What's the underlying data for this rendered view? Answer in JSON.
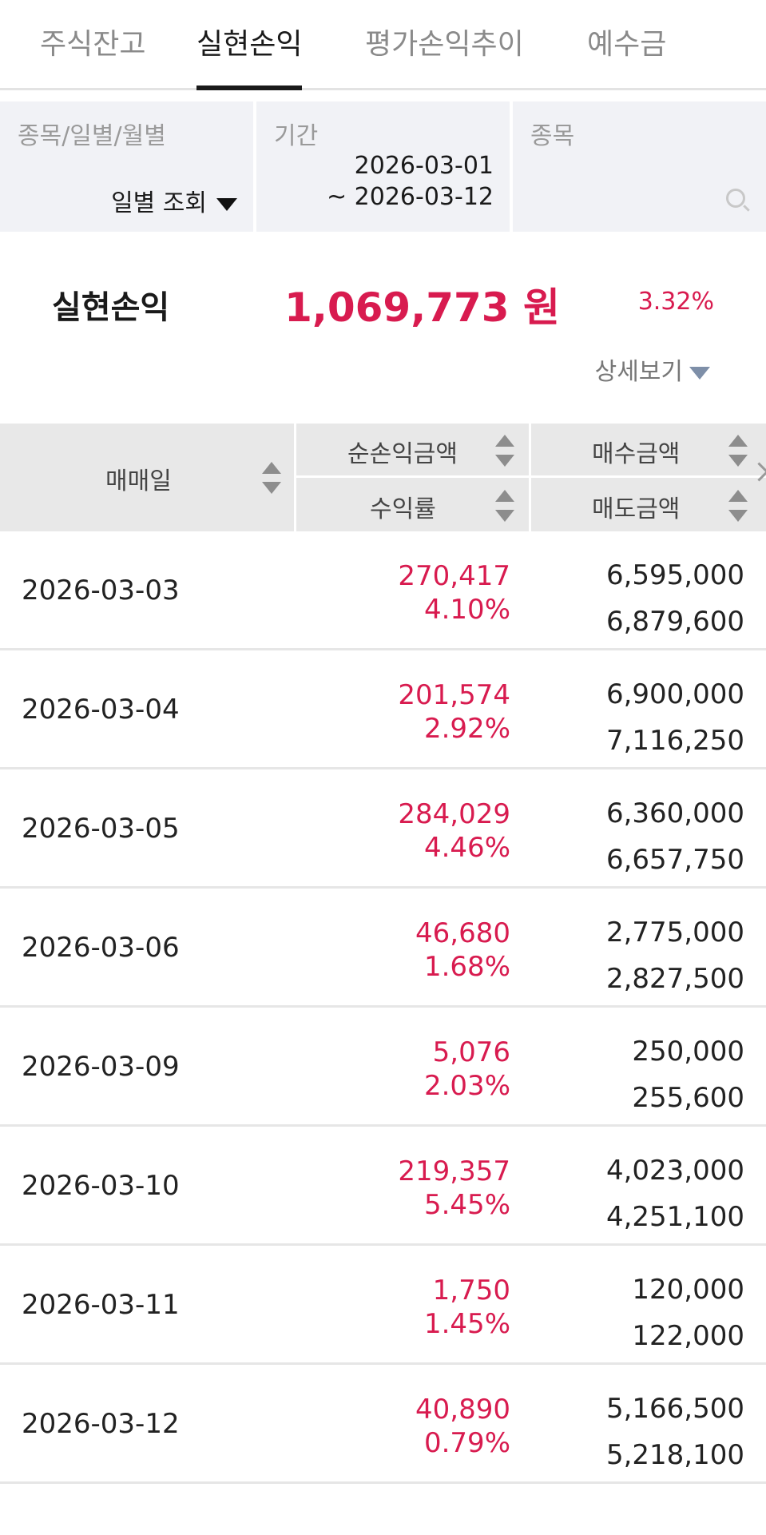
{
  "tabs": [
    {
      "label": "주식잔고",
      "active": false
    },
    {
      "label": "실현손익",
      "active": true
    },
    {
      "label": "평가손익추이",
      "active": false
    },
    {
      "label": "예수금",
      "active": false
    }
  ],
  "filters": {
    "mode_label": "종목/일별/월별",
    "mode_value": "일별 조회",
    "period_label": "기간",
    "period_start": "2026-03-01",
    "period_end": "~ 2026-03-12",
    "stock_label": "종목"
  },
  "summary": {
    "label": "실현손익",
    "amount": "1,069,773 원",
    "rate": "3.32%",
    "detail_label": "상세보기"
  },
  "table": {
    "headers": {
      "date": "매매일",
      "net_pnl": "순손익금액",
      "return_rate": "수익률",
      "buy_amount": "매수금액",
      "sell_amount": "매도금액"
    },
    "rows": [
      {
        "date": "2026-03-03",
        "pnl": "270,417",
        "rate": "4.10%",
        "buy": "6,595,000",
        "sell": "6,879,600"
      },
      {
        "date": "2026-03-04",
        "pnl": "201,574",
        "rate": "2.92%",
        "buy": "6,900,000",
        "sell": "7,116,250"
      },
      {
        "date": "2026-03-05",
        "pnl": "284,029",
        "rate": "4.46%",
        "buy": "6,360,000",
        "sell": "6,657,750"
      },
      {
        "date": "2026-03-06",
        "pnl": "46,680",
        "rate": "1.68%",
        "buy": "2,775,000",
        "sell": "2,827,500"
      },
      {
        "date": "2026-03-09",
        "pnl": "5,076",
        "rate": "2.03%",
        "buy": "250,000",
        "sell": "255,600"
      },
      {
        "date": "2026-03-10",
        "pnl": "219,357",
        "rate": "5.45%",
        "buy": "4,023,000",
        "sell": "4,251,100"
      },
      {
        "date": "2026-03-11",
        "pnl": "1,750",
        "rate": "1.45%",
        "buy": "120,000",
        "sell": "122,000"
      },
      {
        "date": "2026-03-12",
        "pnl": "40,890",
        "rate": "0.79%",
        "buy": "5,166,500",
        "sell": "5,218,100"
      }
    ]
  },
  "colors": {
    "profit": "#d81b4f",
    "header_bg": "#e8e8e8",
    "filter_bg": "#f1f2f6"
  }
}
